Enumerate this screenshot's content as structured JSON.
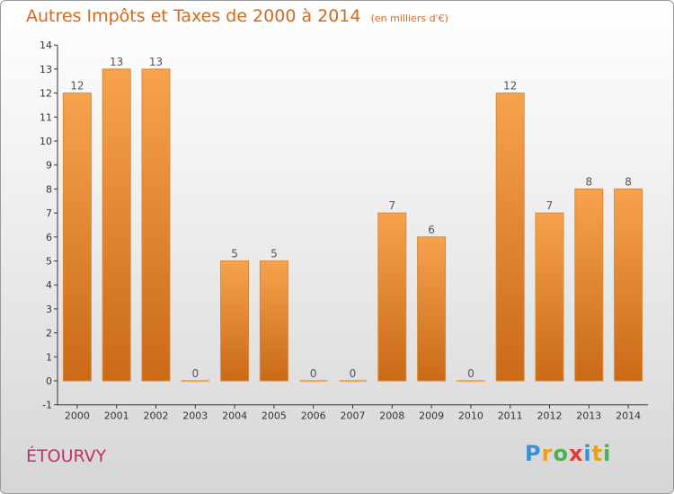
{
  "chart_data": {
    "type": "bar",
    "title": "Autres Impôts et Taxes de 2000 à 2014",
    "subtitle": "(en milliers d'€)",
    "categories": [
      "2000",
      "2001",
      "2002",
      "2003",
      "2004",
      "2005",
      "2006",
      "2007",
      "2008",
      "2009",
      "2010",
      "2011",
      "2012",
      "2013",
      "2014"
    ],
    "values": [
      12,
      13,
      13,
      0,
      5,
      5,
      0,
      0,
      7,
      6,
      0,
      12,
      7,
      8,
      8
    ],
    "ylim": [
      -1,
      14
    ],
    "yticks": [
      "-1",
      "0",
      "1",
      "2",
      "3",
      "4",
      "5",
      "6",
      "7",
      "8",
      "9",
      "10",
      "11",
      "12",
      "13",
      "14"
    ],
    "grid": false,
    "colors": {
      "bar_top": "#f7a24f",
      "bar_bottom": "#c96a17",
      "title": "#d2691e"
    }
  },
  "location": "ÉTOURVY",
  "logo": {
    "letters": [
      "P",
      "r",
      "o",
      "x",
      "i",
      "t",
      "i"
    ],
    "colors": [
      "#3b8fd6",
      "#e8a21a",
      "#4caf50",
      "#e53935",
      "#3b8fd6",
      "#e8a21a",
      "#4caf50"
    ]
  }
}
